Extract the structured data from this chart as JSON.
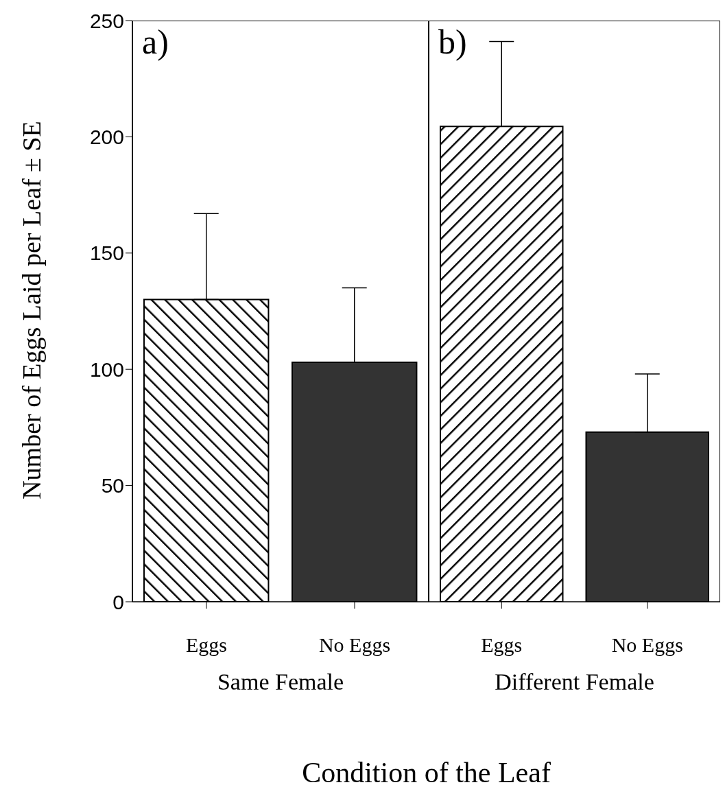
{
  "chart_data": [
    {
      "type": "bar",
      "title": "a)",
      "xlabel": "Same Female",
      "ylabel": "Number of Eggs Laid per Leaf ± SE",
      "categories": [
        "Eggs",
        "No Eggs"
      ],
      "values": [
        130,
        103
      ],
      "errors": [
        [
          130,
          167
        ],
        [
          103,
          135
        ]
      ],
      "colors": [
        "#000000",
        "#333333"
      ],
      "ylim": [
        0,
        250
      ],
      "yticks": [
        0,
        50,
        100,
        150,
        200,
        250
      ],
      "annotations": [
        "Condition of the Leaf"
      ]
    },
    {
      "type": "bar",
      "title": "b)",
      "xlabel": "Different Female",
      "categories": [
        "Eggs",
        "No Eggs"
      ],
      "values": [
        204.5,
        73
      ],
      "errors": [
        [
          204.5,
          241
        ],
        [
          73,
          98
        ]
      ],
      "colors": [
        "#000000",
        "#333333"
      ],
      "ylim": [
        0,
        250
      ],
      "yticks": [
        0,
        50,
        100,
        150,
        200,
        250
      ],
      "tick_labels": "x"
    }
  ]
}
